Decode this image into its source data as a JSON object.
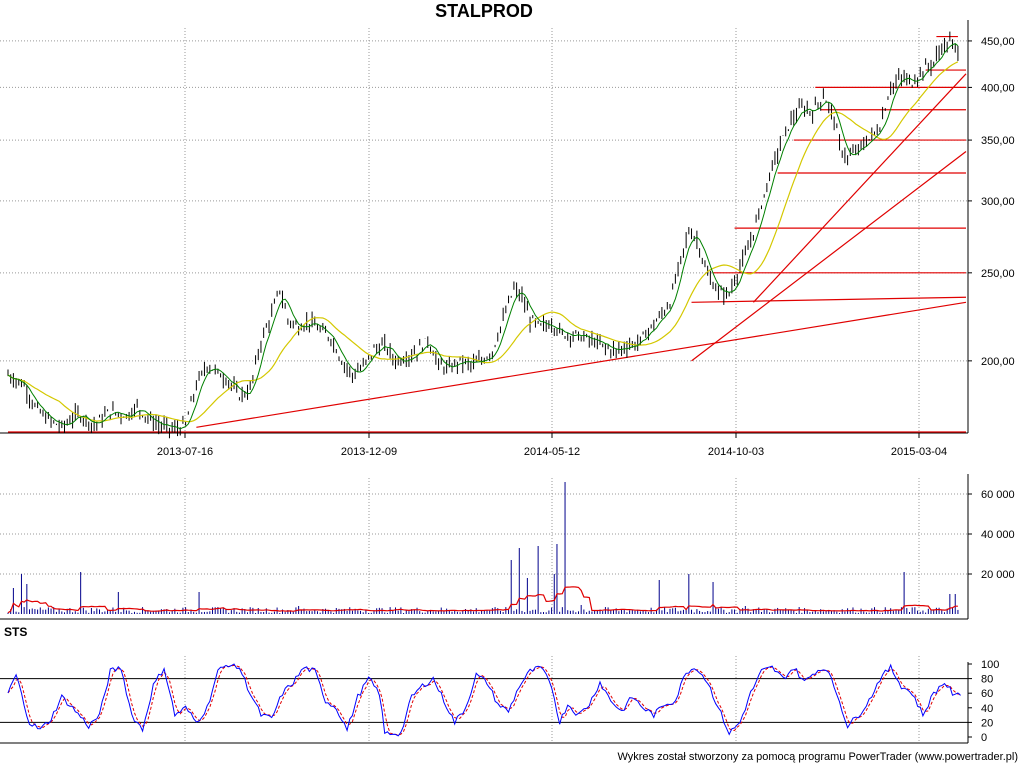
{
  "title": "STALPROD",
  "footer": "Wykres został stworzony za pomocą programu PowerTrader (www.powertrader.pl)",
  "colors": {
    "price": "#000000",
    "ma": "#d4c800",
    "ma_fast": "#008000",
    "support": "#e00000",
    "grid": "#999999",
    "volume": "#00008b",
    "volume_ma": "#e00000",
    "k_line": "#0000ff",
    "d_line": "#e00000"
  },
  "chart_data": [
    {
      "type": "line",
      "title": "STALPROD",
      "x_ticks": [
        "2013-07-16",
        "2013-12-09",
        "2014-05-12",
        "2014-10-03",
        "2015-03-04"
      ],
      "y_ticks": [
        "200,00",
        "250,00",
        "300,00",
        "350,00",
        "400,00",
        "450,00"
      ],
      "y_scale": "log",
      "ylim": [
        167,
        465
      ],
      "grid": true,
      "series": [
        {
          "points": [
            [
              0,
              193
            ],
            [
              6,
              188
            ],
            [
              10,
              178
            ],
            [
              14,
              173
            ],
            [
              20,
              169
            ],
            [
              26,
              175
            ],
            [
              32,
              170
            ],
            [
              38,
              176
            ],
            [
              44,
              174
            ],
            [
              48,
              178
            ],
            [
              52,
              173
            ],
            [
              56,
              170
            ],
            [
              62,
              168
            ],
            [
              66,
              170
            ],
            [
              70,
              188
            ],
            [
              74,
              198
            ],
            [
              78,
              194
            ],
            [
              82,
              190
            ],
            [
              86,
              183
            ],
            [
              90,
              186
            ],
            [
              94,
              210
            ],
            [
              98,
              225
            ],
            [
              101,
              240
            ],
            [
              104,
              222
            ],
            [
              108,
              218
            ],
            [
              112,
              221
            ],
            [
              116,
              216
            ],
            [
              120,
              212
            ],
            [
              124,
              200
            ],
            [
              128,
              193
            ],
            [
              132,
              197
            ],
            [
              136,
              206
            ],
            [
              140,
              208
            ],
            [
              144,
              200
            ],
            [
              148,
              202
            ],
            [
              152,
              205
            ],
            [
              156,
              211
            ],
            [
              160,
              198
            ],
            [
              164,
              196
            ],
            [
              168,
              200
            ],
            [
              172,
              198
            ],
            [
              176,
              200
            ],
            [
              180,
              205
            ],
            [
              184,
              222
            ],
            [
              188,
              240
            ],
            [
              191,
              235
            ],
            [
              194,
              222
            ],
            [
              198,
              218
            ],
            [
              202,
              220
            ],
            [
              206,
              214
            ],
            [
              210,
              214
            ],
            [
              214,
              212
            ],
            [
              218,
              210
            ],
            [
              222,
              207
            ],
            [
              226,
              205
            ],
            [
              230,
              208
            ],
            [
              234,
              209
            ],
            [
              238,
              216
            ],
            [
              242,
              223
            ],
            [
              246,
              232
            ],
            [
              250,
              258
            ],
            [
              253,
              278
            ],
            [
              256,
              272
            ],
            [
              260,
              248
            ],
            [
              264,
              238
            ],
            [
              268,
              237
            ],
            [
              271,
              250
            ],
            [
              275,
              265
            ],
            [
              279,
              290
            ],
            [
              283,
              320
            ],
            [
              287,
              346
            ],
            [
              291,
              368
            ],
            [
              295,
              380
            ],
            [
              299,
              376
            ],
            [
              303,
              392
            ],
            [
              307,
              370
            ],
            [
              309,
              345
            ],
            [
              312,
              334
            ],
            [
              316,
              342
            ],
            [
              320,
              351
            ],
            [
              324,
              362
            ],
            [
              328,
              400
            ],
            [
              332,
              410
            ],
            [
              336,
              405
            ],
            [
              340,
              418
            ],
            [
              344,
              426
            ],
            [
              347,
              443
            ],
            [
              350,
              448
            ],
            [
              353,
              440
            ]
          ]
        }
      ]
    },
    {
      "type": "bar",
      "title": "",
      "y_ticks": [
        "20 000",
        "40 000",
        "60 000"
      ],
      "ylim": [
        0,
        68000
      ],
      "spikes": [
        [
          2,
          13000
        ],
        [
          5,
          20000
        ],
        [
          7,
          15000
        ],
        [
          27,
          21000
        ],
        [
          41,
          11000
        ],
        [
          71,
          11000
        ],
        [
          108,
          4000
        ],
        [
          187,
          27000
        ],
        [
          190,
          33000
        ],
        [
          193,
          18000
        ],
        [
          197,
          34000
        ],
        [
          203,
          20000
        ],
        [
          204,
          35000
        ],
        [
          207,
          66000
        ],
        [
          213,
          4500
        ],
        [
          242,
          17000
        ],
        [
          253,
          20000
        ],
        [
          262,
          16000
        ],
        [
          274,
          4000
        ],
        [
          333,
          21000
        ],
        [
          350,
          10000
        ],
        [
          352,
          10000
        ]
      ]
    },
    {
      "type": "line",
      "title": "STS",
      "y_ticks": [
        "0",
        "20",
        "40",
        "60",
        "80",
        "100"
      ],
      "ylim": [
        0,
        100
      ],
      "reference_lines": [
        20,
        80
      ],
      "series": [
        {
          "points": [
            [
              0,
              60
            ],
            [
              3,
              85
            ],
            [
              6,
              45
            ],
            [
              8,
              20
            ],
            [
              12,
              10
            ],
            [
              16,
              25
            ],
            [
              20,
              55
            ],
            [
              24,
              40
            ],
            [
              30,
              15
            ],
            [
              34,
              30
            ],
            [
              38,
              90
            ],
            [
              42,
              95
            ],
            [
              46,
              30
            ],
            [
              50,
              10
            ],
            [
              54,
              70
            ],
            [
              58,
              95
            ],
            [
              62,
              30
            ],
            [
              66,
              40
            ],
            [
              70,
              20
            ],
            [
              74,
              40
            ],
            [
              78,
              90
            ],
            [
              82,
              100
            ],
            [
              86,
              95
            ],
            [
              90,
              60
            ],
            [
              94,
              30
            ],
            [
              98,
              25
            ],
            [
              102,
              60
            ],
            [
              106,
              75
            ],
            [
              110,
              95
            ],
            [
              114,
              90
            ],
            [
              118,
              50
            ],
            [
              122,
              40
            ],
            [
              126,
              10
            ],
            [
              130,
              55
            ],
            [
              134,
              80
            ],
            [
              138,
              60
            ],
            [
              140,
              5
            ],
            [
              146,
              5
            ],
            [
              150,
              55
            ],
            [
              154,
              70
            ],
            [
              158,
              80
            ],
            [
              162,
              50
            ],
            [
              166,
              20
            ],
            [
              170,
              40
            ],
            [
              174,
              85
            ],
            [
              178,
              75
            ],
            [
              182,
              45
            ],
            [
              186,
              35
            ],
            [
              190,
              70
            ],
            [
              194,
              90
            ],
            [
              198,
              95
            ],
            [
              202,
              70
            ],
            [
              205,
              20
            ],
            [
              208,
              45
            ],
            [
              212,
              30
            ],
            [
              216,
              45
            ],
            [
              220,
              75
            ],
            [
              224,
              50
            ],
            [
              228,
              35
            ],
            [
              232,
              55
            ],
            [
              236,
              40
            ],
            [
              240,
              30
            ],
            [
              244,
              45
            ],
            [
              248,
              50
            ],
            [
              252,
              90
            ],
            [
              256,
              95
            ],
            [
              260,
              75
            ],
            [
              264,
              40
            ],
            [
              268,
              5
            ],
            [
              272,
              20
            ],
            [
              276,
              60
            ],
            [
              280,
              90
            ],
            [
              284,
              95
            ],
            [
              288,
              80
            ],
            [
              292,
              95
            ],
            [
              296,
              75
            ],
            [
              300,
              90
            ],
            [
              304,
              95
            ],
            [
              308,
              60
            ],
            [
              312,
              15
            ],
            [
              316,
              30
            ],
            [
              320,
              50
            ],
            [
              324,
              80
            ],
            [
              328,
              95
            ],
            [
              332,
              70
            ],
            [
              336,
              60
            ],
            [
              340,
              30
            ],
            [
              344,
              60
            ],
            [
              348,
              75
            ],
            [
              352,
              55
            ],
            [
              354,
              60
            ]
          ]
        }
      ]
    }
  ]
}
